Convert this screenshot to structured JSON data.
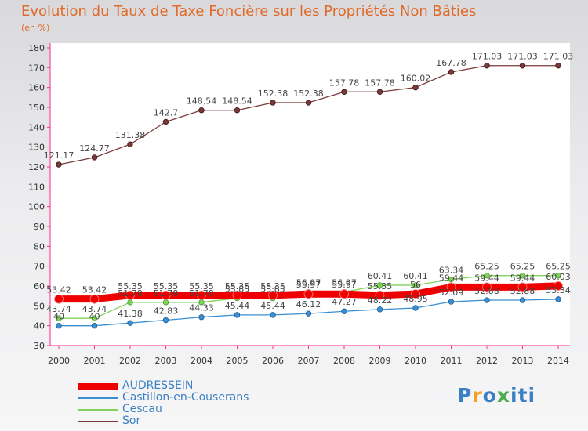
{
  "header": {
    "title": "Evolution du Taux de Taxe Foncière sur les Propriétés Non Bâties",
    "subtitle": "(en %)"
  },
  "logo": {
    "letters": [
      "P",
      "r",
      "o",
      "x",
      "i",
      "t",
      "i"
    ],
    "colors": [
      "#3b7fc4",
      "#f4a020",
      "#3b7fc4",
      "#4caf50",
      "#3b7fc4",
      "#3b7fc4",
      "#3b7fc4"
    ]
  },
  "chart_data": {
    "type": "line",
    "title": "Evolution du Taux de Taxe Foncière sur les Propriétés Non Bâties",
    "ylabel": "(en %)",
    "x": [
      "2000",
      "2001",
      "2002",
      "2003",
      "2004",
      "2005",
      "2006",
      "2007",
      "2008",
      "2009",
      "2010",
      "2011",
      "2012",
      "2013",
      "2014"
    ],
    "ylim": [
      30,
      180
    ],
    "yticks": [
      30,
      40,
      50,
      60,
      70,
      80,
      90,
      100,
      110,
      120,
      130,
      140,
      150,
      160,
      170,
      180
    ],
    "grid": false,
    "legend_position": "bottom-left",
    "series": [
      {
        "name": "AUDRESSEIN",
        "color": "#ee0000",
        "values": [
          53.42,
          53.42,
          55.35,
          55.35,
          55.35,
          55.35,
          55.35,
          55.97,
          55.97,
          55.35,
          56,
          59.44,
          59.44,
          59.44,
          60.03
        ],
        "labels": [
          "53.42",
          "53.42",
          "55.35",
          "55.35",
          "55.35",
          "55.35",
          "55.35",
          "55.97",
          "55.97",
          "55.35",
          "56",
          "59.44",
          "59.44",
          "59.44",
          "60.03"
        ]
      },
      {
        "name": "Castillon-en-Couserans",
        "color": "#3b8fd0",
        "values": [
          40,
          40,
          41.38,
          42.83,
          44.33,
          45.44,
          45.44,
          46.12,
          47.27,
          48.22,
          48.95,
          52.09,
          52.88,
          52.88,
          53.34
        ],
        "labels": [
          "40",
          "40",
          "41.38",
          "42.83",
          "44.33",
          "45.44",
          "45.44",
          "46.12",
          "47.27",
          "48.22",
          "48.95",
          "52.09",
          "52.88",
          "52.88",
          "53.34"
        ]
      },
      {
        "name": "Cescau",
        "color": "#7fd35a",
        "values": [
          43.74,
          43.74,
          51.78,
          51.78,
          51.78,
          53.85,
          53.85,
          56.97,
          56.97,
          60.41,
          60.41,
          63.34,
          65.25,
          65.25,
          65.25
        ],
        "labels": [
          "43.74",
          "43.74",
          "51.78",
          "51.78",
          "51.78",
          "53.85",
          "53.85",
          "56.97",
          "56.97",
          "60.41",
          "60.41",
          "63.34",
          "65.25",
          "65.25",
          "65.25"
        ]
      },
      {
        "name": "Sor",
        "color": "#7a3a3a",
        "values": [
          121.17,
          124.77,
          131.38,
          142.7,
          148.54,
          148.54,
          152.38,
          152.38,
          157.78,
          157.78,
          160.02,
          167.78,
          171.03,
          171.03,
          171.03
        ],
        "labels": [
          "121.17",
          "124.77",
          "131.38",
          "142.7",
          "148.54",
          "148.54",
          "152.38",
          "152.38",
          "157.78",
          "157.78",
          "160.02",
          "167.78",
          "171.03",
          "171.03",
          "171.03"
        ]
      }
    ]
  }
}
